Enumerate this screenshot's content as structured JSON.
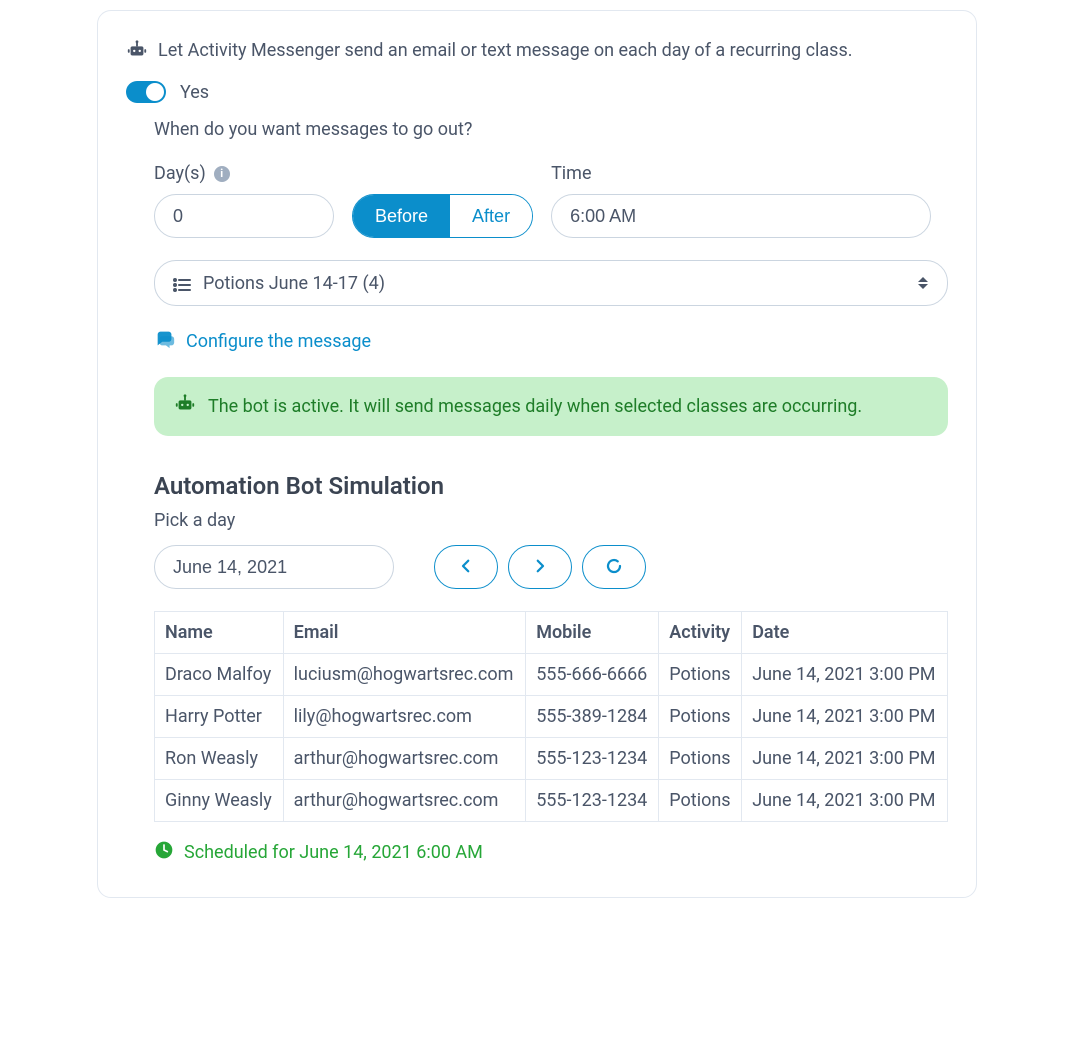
{
  "colors": {
    "primary": "#0b8ecb",
    "text": "#4a5568",
    "border": "#e2e8f0",
    "success_bg": "#c6f0ca",
    "success_text": "#1e7d28",
    "scheduled": "#26a637"
  },
  "intro": {
    "text": "Let Activity Messenger send an email or text message on each day of a recurring class."
  },
  "toggle": {
    "on": true,
    "label": "Yes"
  },
  "schedule": {
    "prompt": "When do you want messages to go out?",
    "days_label": "Day(s)",
    "days_value": "0",
    "before_label": "Before",
    "after_label": "After",
    "active_segment": "before",
    "time_label": "Time",
    "time_value": "6:00 AM",
    "class_select": "Potions June 14-17 (4)"
  },
  "configure": {
    "link": "Configure the message"
  },
  "alert": {
    "text": "The bot is active. It will send messages daily when selected classes are occurring."
  },
  "simulation": {
    "title": "Automation Bot Simulation",
    "subtitle": "Pick a day",
    "date_value": "June 14, 2021"
  },
  "table": {
    "columns": [
      "Name",
      "Email",
      "Mobile",
      "Activity",
      "Date"
    ],
    "rows": [
      [
        "Draco Malfoy",
        "luciusm@hogwartsrec.com",
        "555-666-6666",
        "Potions",
        "June 14, 2021 3:00 PM"
      ],
      [
        "Harry Potter",
        "lily@hogwartsrec.com",
        "555-389-1284",
        "Potions",
        "June 14, 2021 3:00 PM"
      ],
      [
        "Ron Weasly",
        "arthur@hogwartsrec.com",
        "555-123-1234",
        "Potions",
        "June 14, 2021 3:00 PM"
      ],
      [
        "Ginny Weasly",
        "arthur@hogwartsrec.com",
        "555-123-1234",
        "Potions",
        "June 14, 2021 3:00 PM"
      ]
    ]
  },
  "scheduled": {
    "text": "Scheduled for June 14, 2021 6:00 AM"
  }
}
